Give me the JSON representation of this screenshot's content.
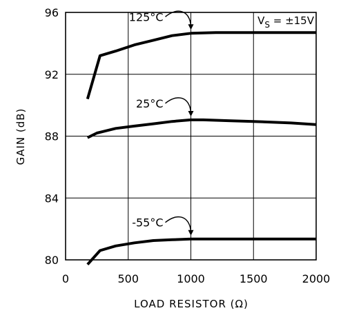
{
  "chart_data": {
    "type": "line",
    "xlabel": "LOAD RESISTOR (Ω)",
    "ylabel": "GAIN (dB)",
    "xlim": [
      0,
      2000
    ],
    "ylim": [
      80,
      96
    ],
    "xticks": [
      0,
      500,
      1000,
      1500,
      2000
    ],
    "xtick_labels": [
      "0",
      "500",
      "1000",
      "1500",
      "2000"
    ],
    "yticks": [
      80,
      84,
      88,
      92,
      96
    ],
    "ytick_labels": [
      "80",
      "84",
      "88",
      "92",
      "96"
    ],
    "grid": true,
    "annotation": {
      "v_main": "V",
      "v_sub": "S",
      "v_rest": " = ±15V",
      "placement": "top-right"
    },
    "series": [
      {
        "name": "125°C",
        "x": [
          175,
          275,
          400,
          550,
          700,
          850,
          1000,
          1200,
          1500,
          1800,
          2000
        ],
        "y": [
          90.4,
          93.2,
          93.5,
          93.9,
          94.2,
          94.5,
          94.65,
          94.7,
          94.7,
          94.7,
          94.7
        ]
      },
      {
        "name": "25°C",
        "x": [
          175,
          250,
          300,
          400,
          550,
          700,
          850,
          1000,
          1100,
          1300,
          1500,
          1800,
          2000
        ],
        "y": [
          87.9,
          88.2,
          88.3,
          88.5,
          88.65,
          88.8,
          88.95,
          89.05,
          89.05,
          89.0,
          88.95,
          88.85,
          88.75
        ]
      },
      {
        "name": "-55°C",
        "x": [
          175,
          275,
          400,
          550,
          700,
          850,
          1000,
          1300,
          1600,
          2000
        ],
        "y": [
          79.7,
          80.6,
          80.9,
          81.1,
          81.25,
          81.3,
          81.35,
          81.35,
          81.35,
          81.35
        ]
      }
    ]
  }
}
